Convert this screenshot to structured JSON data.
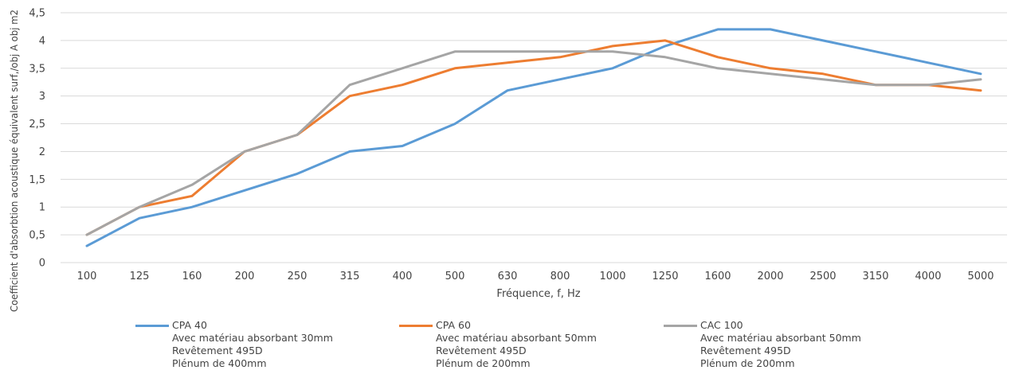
{
  "chart_data": {
    "type": "line",
    "title": "",
    "xlabel": "Fréquence, f, Hz",
    "ylabel": "Coefficient d'absorbtion acoustique équivalent surf,/obj A obj m2",
    "categories": [
      "100",
      "125",
      "160",
      "200",
      "250",
      "315",
      "400",
      "500",
      "630",
      "800",
      "1000",
      "1250",
      "1600",
      "2000",
      "2500",
      "3150",
      "4000",
      "5000"
    ],
    "ylim": [
      0,
      4.5
    ],
    "yticks": [
      "0",
      "0,5",
      "1",
      "1,5",
      "2",
      "2,5",
      "3",
      "3,5",
      "4",
      "4,5"
    ],
    "grid": true,
    "legend_position": "bottom",
    "series": [
      {
        "name": "CPA 40",
        "color": "#5b9bd5",
        "description": [
          "Avec matériau absorbant 30mm",
          "Revêtement  495D",
          "Plénum de 400mm"
        ],
        "values": [
          0.3,
          0.8,
          1.0,
          1.3,
          1.6,
          2.0,
          2.1,
          2.5,
          3.1,
          3.3,
          3.5,
          3.9,
          4.2,
          4.2,
          4.0,
          3.8,
          3.6,
          3.4
        ]
      },
      {
        "name": "CPA 60",
        "color": "#ed7d31",
        "description": [
          "Avec matériau absorbant 50mm",
          "Revêtement  495D",
          "Plénum de 200mm"
        ],
        "values": [
          0.5,
          1.0,
          1.2,
          2.0,
          2.3,
          3.0,
          3.2,
          3.5,
          3.6,
          3.7,
          3.9,
          4.0,
          3.7,
          3.5,
          3.4,
          3.2,
          3.2,
          3.1
        ]
      },
      {
        "name": "CAC 100",
        "color": "#a5a5a5",
        "description": [
          "Avec matériau absorbant 50mm",
          "Revêtement  495D",
          "Plénum de 200mm"
        ],
        "values": [
          0.5,
          1.0,
          1.4,
          2.0,
          2.3,
          3.2,
          3.5,
          3.8,
          3.8,
          3.8,
          3.8,
          3.7,
          3.5,
          3.4,
          3.3,
          3.2,
          3.2,
          3.3
        ]
      }
    ]
  }
}
